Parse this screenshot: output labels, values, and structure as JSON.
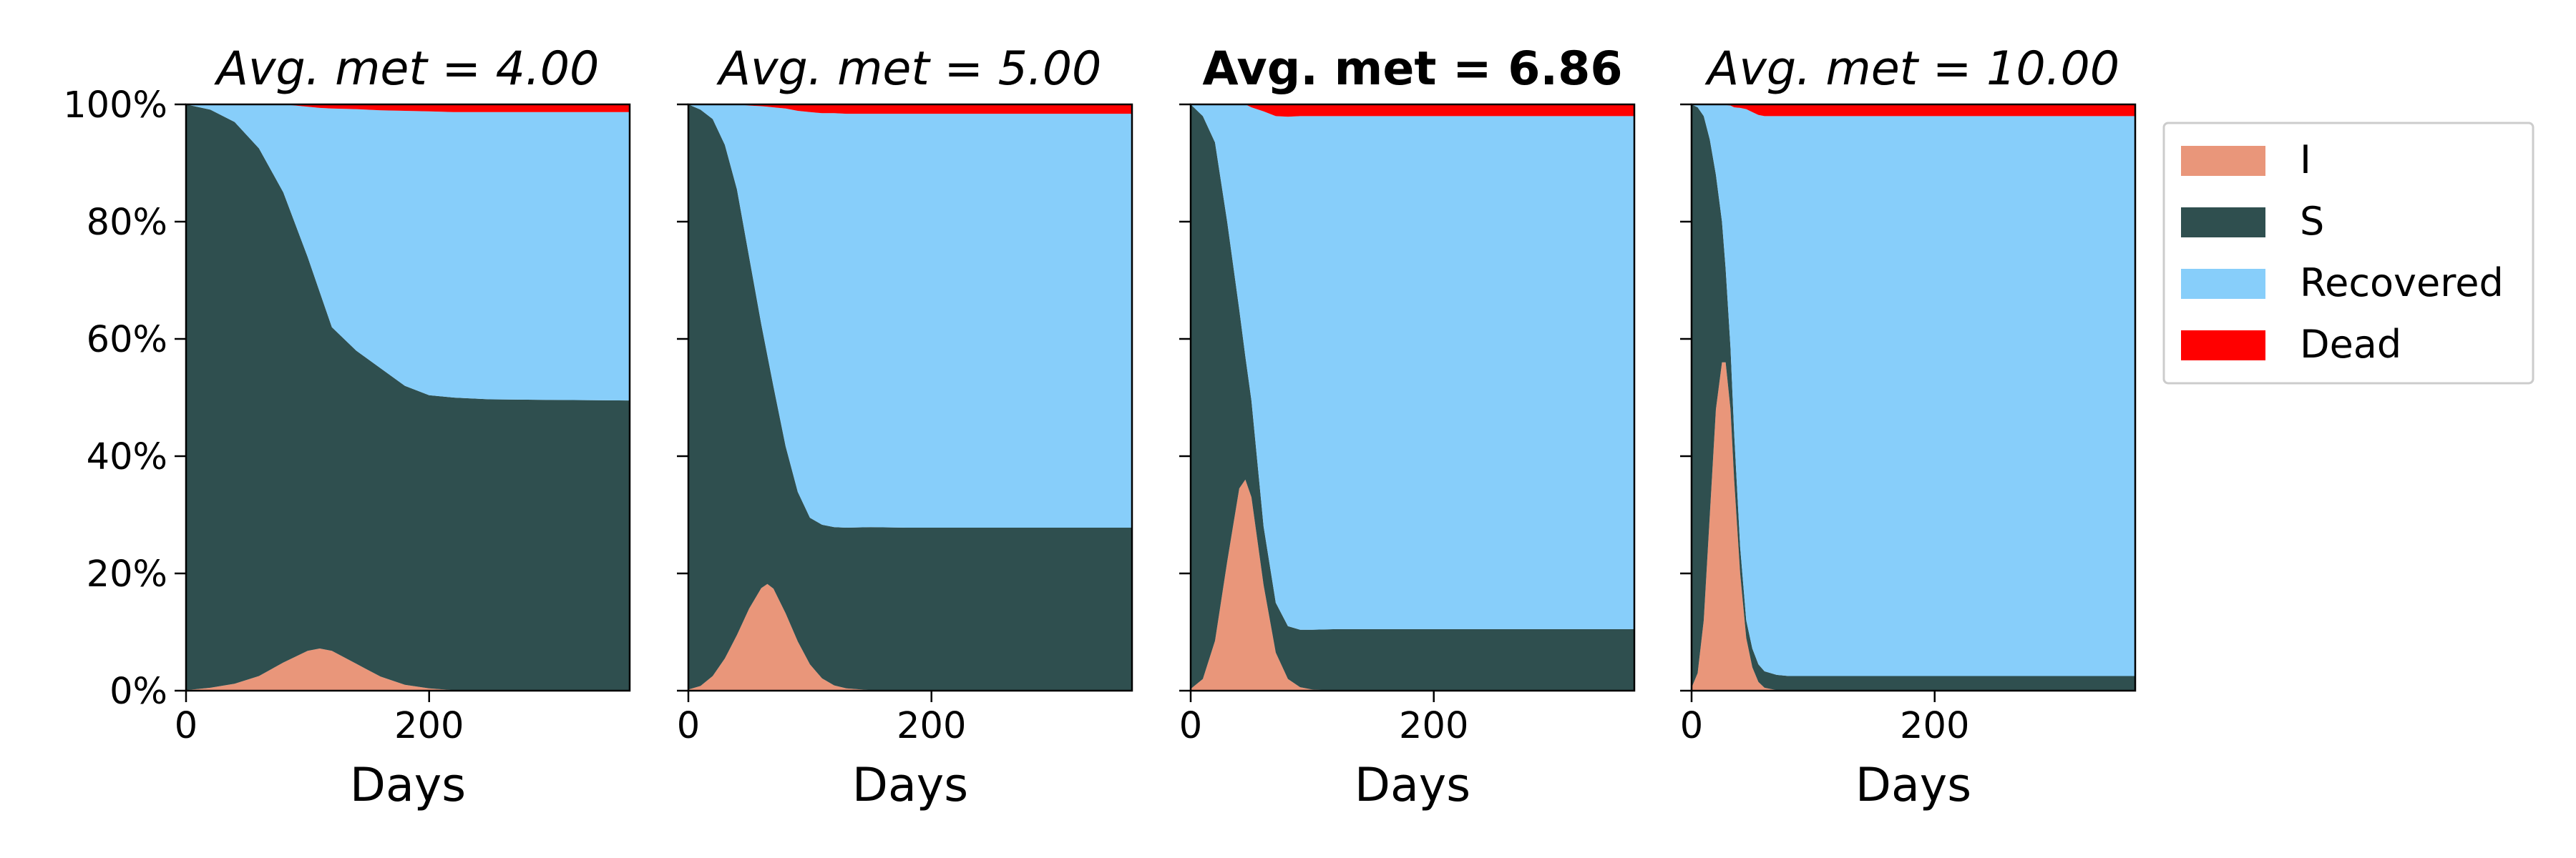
{
  "chart_data": {
    "type": "area",
    "stacking": "percent",
    "x_unit_label": "Days",
    "xlim": [
      0,
      365
    ],
    "xticks": [
      "0",
      "200"
    ],
    "ylim": [
      0,
      100
    ],
    "yticks": [
      "0%",
      "20%",
      "40%",
      "60%",
      "80%",
      "100%"
    ],
    "sharey": true,
    "grid": false,
    "legend": {
      "placement": "outside-right-top",
      "entries": [
        {
          "label": "I",
          "color": "#E9967A"
        },
        {
          "label": "S",
          "color": "#2F4F4F"
        },
        {
          "label": "Recovered",
          "color": "#87CEFA"
        },
        {
          "label": "Dead",
          "color": "#FF0000"
        }
      ]
    },
    "stack_order": [
      "I",
      "S",
      "Recovered",
      "Dead"
    ],
    "panels": [
      {
        "title_prefix": "Avg. met",
        "title_value": "4.00",
        "title_style": "italic",
        "x": [
          0,
          20,
          40,
          60,
          80,
          100,
          110,
          120,
          140,
          160,
          180,
          200,
          220,
          250,
          300,
          365
        ],
        "series": [
          {
            "name": "I",
            "values": [
              0.1,
              0.5,
              1.2,
              2.5,
              4.8,
              6.8,
              7.2,
              6.8,
              4.6,
              2.4,
              1.0,
              0.4,
              0.1,
              0.0,
              0.0,
              0.0
            ]
          },
          {
            "name": "S",
            "values": [
              99.9,
              98.6,
              95.8,
              90.0,
              80.2,
              67.2,
              60.8,
              55.2,
              53.4,
              52.6,
              51.0,
              50.0,
              49.9,
              49.7,
              49.6,
              49.5
            ]
          },
          {
            "name": "Recovered",
            "values": [
              0.0,
              0.9,
              3.0,
              7.5,
              15.0,
              25.6,
              31.4,
              37.3,
              41.2,
              44.0,
              46.9,
              48.4,
              48.7,
              49.0,
              49.1,
              49.2
            ]
          },
          {
            "name": "Dead",
            "values": [
              0.0,
              0.0,
              0.0,
              0.0,
              0.0,
              0.4,
              0.6,
              0.7,
              0.8,
              1.0,
              1.1,
              1.2,
              1.3,
              1.3,
              1.3,
              1.3
            ]
          }
        ]
      },
      {
        "title_prefix": "Avg. met",
        "title_value": "5.00",
        "title_style": "italic",
        "x": [
          0,
          10,
          20,
          30,
          40,
          50,
          60,
          65,
          70,
          80,
          90,
          100,
          110,
          120,
          130,
          150,
          180,
          250,
          365
        ],
        "series": [
          {
            "name": "I",
            "values": [
              0.2,
              0.8,
              2.5,
              5.5,
              9.5,
              14.0,
              17.5,
              18.2,
              17.4,
              13.2,
              8.4,
              4.5,
              2.1,
              0.9,
              0.4,
              0.1,
              0.0,
              0.0,
              0.0
            ]
          },
          {
            "name": "S",
            "values": [
              99.8,
              98.3,
              95.0,
              87.6,
              76.0,
              60.0,
              45.0,
              39.0,
              34.5,
              28.5,
              25.5,
              25.0,
              26.2,
              27.0,
              27.4,
              27.8,
              27.8,
              27.8,
              27.8
            ]
          },
          {
            "name": "Recovered",
            "values": [
              0.0,
              0.9,
              2.5,
              6.9,
              14.5,
              25.8,
              37.2,
              42.4,
              47.6,
              57.6,
              65.0,
              69.2,
              70.2,
              70.6,
              70.6,
              70.5,
              70.6,
              70.6,
              70.6
            ]
          },
          {
            "name": "Dead",
            "values": [
              0.0,
              0.0,
              0.0,
              0.0,
              0.0,
              0.2,
              0.3,
              0.4,
              0.5,
              0.7,
              1.1,
              1.3,
              1.5,
              1.5,
              1.6,
              1.6,
              1.6,
              1.6,
              1.6
            ]
          }
        ]
      },
      {
        "title_prefix": "Avg. met",
        "title_value": "6.86",
        "title_style": "bold",
        "x": [
          0,
          10,
          20,
          30,
          40,
          45,
          50,
          60,
          70,
          80,
          90,
          100,
          120,
          150,
          250,
          365
        ],
        "series": [
          {
            "name": "I",
            "values": [
              0.3,
              2.0,
              8.5,
              22.0,
              34.5,
              36.0,
              33.0,
              18.0,
              6.5,
              2.0,
              0.6,
              0.2,
              0.0,
              0.0,
              0.0,
              0.0
            ]
          },
          {
            "name": "S",
            "values": [
              99.7,
              96.0,
              85.0,
              58.0,
              30.5,
              21.0,
              16.5,
              10.0,
              8.5,
              9.0,
              9.8,
              10.2,
              10.5,
              10.5,
              10.5,
              10.5
            ]
          },
          {
            "name": "Recovered",
            "values": [
              0.0,
              2.0,
              6.5,
              20.0,
              35.0,
              43.0,
              50.0,
              70.8,
              83.0,
              86.9,
              87.6,
              87.6,
              87.5,
              87.5,
              87.5,
              87.5
            ]
          },
          {
            "name": "Dead",
            "values": [
              0.0,
              0.0,
              0.0,
              0.0,
              0.0,
              0.0,
              0.5,
              1.2,
              2.0,
              2.1,
              2.0,
              2.0,
              2.0,
              2.0,
              2.0,
              2.0
            ]
          }
        ]
      },
      {
        "title_prefix": "Avg. met",
        "title_value": "10.00",
        "title_style": "italic",
        "x": [
          0,
          5,
          10,
          15,
          20,
          25,
          28,
          32,
          35,
          40,
          45,
          50,
          55,
          60,
          70,
          80,
          100,
          150,
          365
        ],
        "series": [
          {
            "name": "I",
            "values": [
              0.5,
              3.0,
              12.0,
              30.0,
              48.0,
              56.0,
              56.0,
              48.0,
              36.0,
              20.0,
              9.0,
              4.0,
              1.5,
              0.5,
              0.1,
              0.0,
              0.0,
              0.0,
              0.0
            ]
          },
          {
            "name": "S",
            "values": [
              99.5,
              96.5,
              86.0,
              64.0,
              40.0,
              24.0,
              16.0,
              10.5,
              8.0,
              4.5,
              3.0,
              3.2,
              3.0,
              2.8,
              2.6,
              2.5,
              2.5,
              2.5,
              2.5
            ]
          },
          {
            "name": "Recovered",
            "values": [
              0.0,
              0.5,
              2.0,
              6.0,
              12.0,
              19.9,
              27.9,
              41.3,
              55.5,
              74.9,
              87.2,
              91.5,
              93.7,
              94.7,
              95.3,
              95.5,
              95.5,
              95.5,
              95.5
            ]
          },
          {
            "name": "Dead",
            "values": [
              0.0,
              0.0,
              0.0,
              0.0,
              0.0,
              0.1,
              0.1,
              0.2,
              0.5,
              0.6,
              0.8,
              1.3,
              1.8,
              2.0,
              2.0,
              2.0,
              2.0,
              2.0,
              2.0
            ]
          }
        ]
      }
    ]
  }
}
